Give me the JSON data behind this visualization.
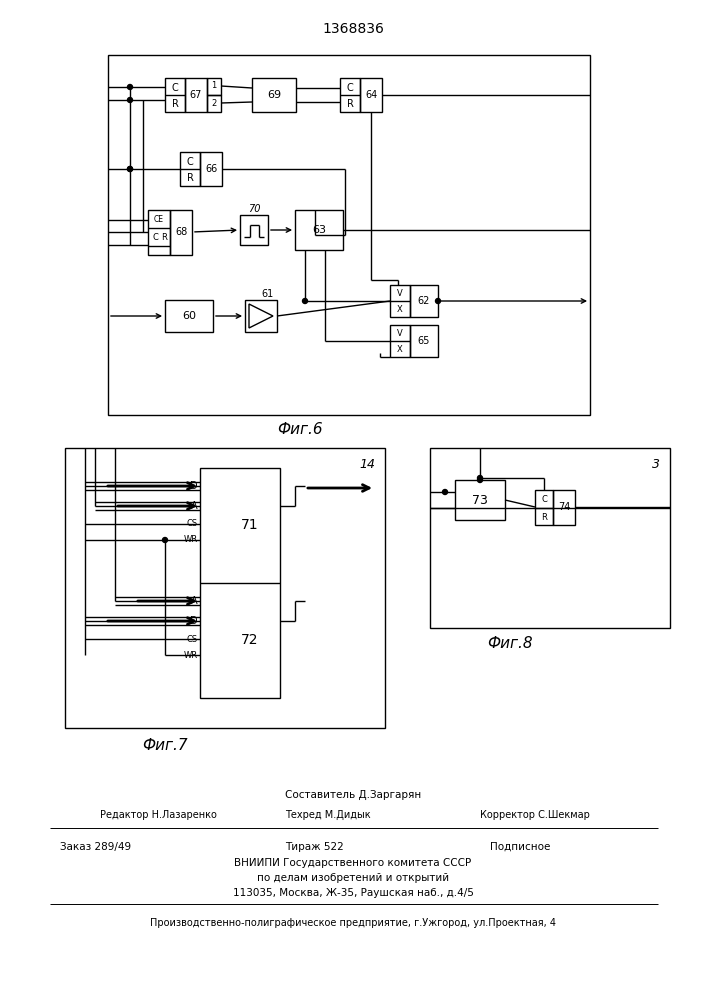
{
  "title": "1368836",
  "fig6_label": "Фиг.6",
  "fig7_label": "Фиг.7",
  "fig8_label": "Фиг.8",
  "bg_color": "#ffffff",
  "line_color": "#000000"
}
